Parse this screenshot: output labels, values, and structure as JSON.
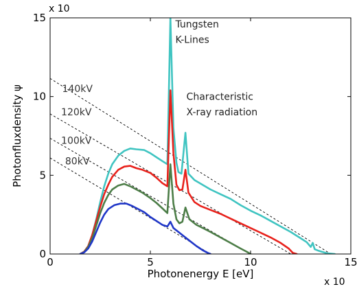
{
  "chart_data": {
    "type": "line",
    "xlabel": "Photonenergy E [eV]",
    "ylabel": "Photonfluxdensity ψ",
    "x_multiplier": "x 10",
    "y_multiplier": "x 10",
    "xlim": [
      0,
      15
    ],
    "ylim": [
      0,
      15
    ],
    "xticks": [
      0,
      5,
      10,
      15
    ],
    "yticks": [
      0,
      5,
      10,
      15
    ],
    "xtick_labels": [
      "0",
      "5",
      "10",
      "15"
    ],
    "ytick_labels": [
      "0",
      "5",
      "10",
      "15"
    ],
    "grid": false,
    "annotations": [
      {
        "text": "Tungsten",
        "x": 6.25,
        "y": 14.4
      },
      {
        "text": "K-Lines",
        "x": 6.25,
        "y": 13.4
      },
      {
        "text": "Characteristic",
        "x": 6.8,
        "y": 9.8
      },
      {
        "text": "X-ray radiation",
        "x": 6.8,
        "y": 8.8
      }
    ],
    "kramers_lines": [
      {
        "label": "140kV",
        "x0": 0.0,
        "y0": 11.15,
        "x1": 14.0,
        "y1": 0.0,
        "color": "#111111"
      },
      {
        "label": "120kV",
        "x0": 0.0,
        "y0": 8.9,
        "x1": 12.0,
        "y1": 0.0,
        "color": "#111111"
      },
      {
        "label": "100kV",
        "x0": 0.0,
        "y0": 7.35,
        "x1": 10.0,
        "y1": 0.0,
        "color": "#111111"
      },
      {
        "label": "80kV",
        "x0": 0.0,
        "y0": 6.1,
        "x1": 8.0,
        "y1": 0.0,
        "color": "#111111"
      }
    ],
    "kv_label_positions": [
      {
        "label": "140kV",
        "x": 0.6,
        "y": 10.3
      },
      {
        "label": "120kV",
        "x": 0.55,
        "y": 8.8
      },
      {
        "label": "100kV",
        "x": 0.55,
        "y": 7.0
      },
      {
        "label": "80kV",
        "x": 0.75,
        "y": 5.7
      }
    ],
    "series": [
      {
        "name": "140kV",
        "color": "#3fc4c1",
        "points": [
          [
            1.5,
            0
          ],
          [
            1.7,
            0.15
          ],
          [
            1.9,
            0.5
          ],
          [
            2.1,
            1.2
          ],
          [
            2.3,
            2.2
          ],
          [
            2.5,
            3.3
          ],
          [
            2.7,
            4.3
          ],
          [
            2.9,
            5.1
          ],
          [
            3.1,
            5.7
          ],
          [
            3.4,
            6.25
          ],
          [
            3.7,
            6.55
          ],
          [
            4.0,
            6.7
          ],
          [
            4.3,
            6.65
          ],
          [
            4.7,
            6.6
          ],
          [
            5.0,
            6.4
          ],
          [
            5.3,
            6.15
          ],
          [
            5.6,
            5.9
          ],
          [
            5.85,
            5.7
          ],
          [
            6.0,
            15.0
          ],
          [
            6.15,
            8.0
          ],
          [
            6.3,
            5.8
          ],
          [
            6.4,
            5.2
          ],
          [
            6.55,
            5.1
          ],
          [
            6.75,
            7.7
          ],
          [
            6.9,
            5.1
          ],
          [
            7.2,
            4.7
          ],
          [
            7.6,
            4.4
          ],
          [
            8.0,
            4.1
          ],
          [
            8.5,
            3.8
          ],
          [
            9.0,
            3.5
          ],
          [
            9.5,
            3.1
          ],
          [
            10.0,
            2.75
          ],
          [
            10.5,
            2.45
          ],
          [
            11.0,
            2.1
          ],
          [
            11.5,
            1.75
          ],
          [
            12.0,
            1.4
          ],
          [
            12.5,
            1.0
          ],
          [
            12.8,
            0.75
          ],
          [
            13.0,
            0.45
          ],
          [
            13.1,
            0.7
          ],
          [
            13.2,
            0.3
          ],
          [
            13.4,
            0.2
          ],
          [
            13.8,
            0.05
          ],
          [
            14.2,
            0
          ]
        ]
      },
      {
        "name": "120kV",
        "color": "#e8211b",
        "points": [
          [
            1.5,
            0
          ],
          [
            1.7,
            0.15
          ],
          [
            1.9,
            0.5
          ],
          [
            2.1,
            1.2
          ],
          [
            2.3,
            2.1
          ],
          [
            2.5,
            3.0
          ],
          [
            2.7,
            3.8
          ],
          [
            2.9,
            4.4
          ],
          [
            3.1,
            4.9
          ],
          [
            3.4,
            5.35
          ],
          [
            3.7,
            5.55
          ],
          [
            4.0,
            5.6
          ],
          [
            4.3,
            5.45
          ],
          [
            4.6,
            5.35
          ],
          [
            5.0,
            5.15
          ],
          [
            5.3,
            4.85
          ],
          [
            5.6,
            4.5
          ],
          [
            5.85,
            4.3
          ],
          [
            6.0,
            10.4
          ],
          [
            6.15,
            6.4
          ],
          [
            6.3,
            4.4
          ],
          [
            6.45,
            4.05
          ],
          [
            6.6,
            4.1
          ],
          [
            6.75,
            5.35
          ],
          [
            6.9,
            3.9
          ],
          [
            7.2,
            3.3
          ],
          [
            7.5,
            3.05
          ],
          [
            8.0,
            2.8
          ],
          [
            8.5,
            2.55
          ],
          [
            9.0,
            2.25
          ],
          [
            9.5,
            1.95
          ],
          [
            10.0,
            1.65
          ],
          [
            10.5,
            1.35
          ],
          [
            11.0,
            1.05
          ],
          [
            11.5,
            0.7
          ],
          [
            11.9,
            0.35
          ],
          [
            12.1,
            0.08
          ],
          [
            12.3,
            0
          ]
        ]
      },
      {
        "name": "100kV",
        "color": "#4c7d47",
        "points": [
          [
            1.5,
            0
          ],
          [
            1.7,
            0.12
          ],
          [
            1.9,
            0.45
          ],
          [
            2.1,
            1.0
          ],
          [
            2.3,
            1.8
          ],
          [
            2.5,
            2.6
          ],
          [
            2.7,
            3.25
          ],
          [
            2.9,
            3.75
          ],
          [
            3.1,
            4.1
          ],
          [
            3.4,
            4.35
          ],
          [
            3.7,
            4.45
          ],
          [
            4.0,
            4.3
          ],
          [
            4.3,
            4.1
          ],
          [
            4.6,
            3.9
          ],
          [
            5.0,
            3.55
          ],
          [
            5.3,
            3.25
          ],
          [
            5.6,
            2.9
          ],
          [
            5.85,
            2.6
          ],
          [
            6.0,
            5.7
          ],
          [
            6.15,
            3.2
          ],
          [
            6.3,
            2.2
          ],
          [
            6.45,
            1.95
          ],
          [
            6.6,
            2.05
          ],
          [
            6.75,
            2.95
          ],
          [
            6.95,
            2.2
          ],
          [
            7.3,
            1.85
          ],
          [
            7.7,
            1.6
          ],
          [
            8.0,
            1.4
          ],
          [
            8.5,
            1.05
          ],
          [
            9.0,
            0.7
          ],
          [
            9.5,
            0.35
          ],
          [
            9.8,
            0.15
          ],
          [
            10.0,
            0
          ]
        ]
      },
      {
        "name": "80kV",
        "color": "#1f36c8",
        "points": [
          [
            1.5,
            0
          ],
          [
            1.7,
            0.1
          ],
          [
            1.9,
            0.35
          ],
          [
            2.1,
            0.8
          ],
          [
            2.3,
            1.4
          ],
          [
            2.5,
            2.0
          ],
          [
            2.7,
            2.5
          ],
          [
            2.9,
            2.85
          ],
          [
            3.2,
            3.1
          ],
          [
            3.5,
            3.2
          ],
          [
            3.8,
            3.2
          ],
          [
            4.1,
            3.05
          ],
          [
            4.4,
            2.85
          ],
          [
            4.7,
            2.65
          ],
          [
            5.0,
            2.35
          ],
          [
            5.3,
            2.1
          ],
          [
            5.6,
            1.85
          ],
          [
            5.85,
            1.75
          ],
          [
            6.0,
            2.05
          ],
          [
            6.15,
            1.65
          ],
          [
            6.4,
            1.4
          ],
          [
            6.7,
            1.1
          ],
          [
            7.0,
            0.8
          ],
          [
            7.3,
            0.5
          ],
          [
            7.6,
            0.25
          ],
          [
            7.85,
            0.08
          ],
          [
            8.0,
            0
          ]
        ]
      }
    ]
  }
}
